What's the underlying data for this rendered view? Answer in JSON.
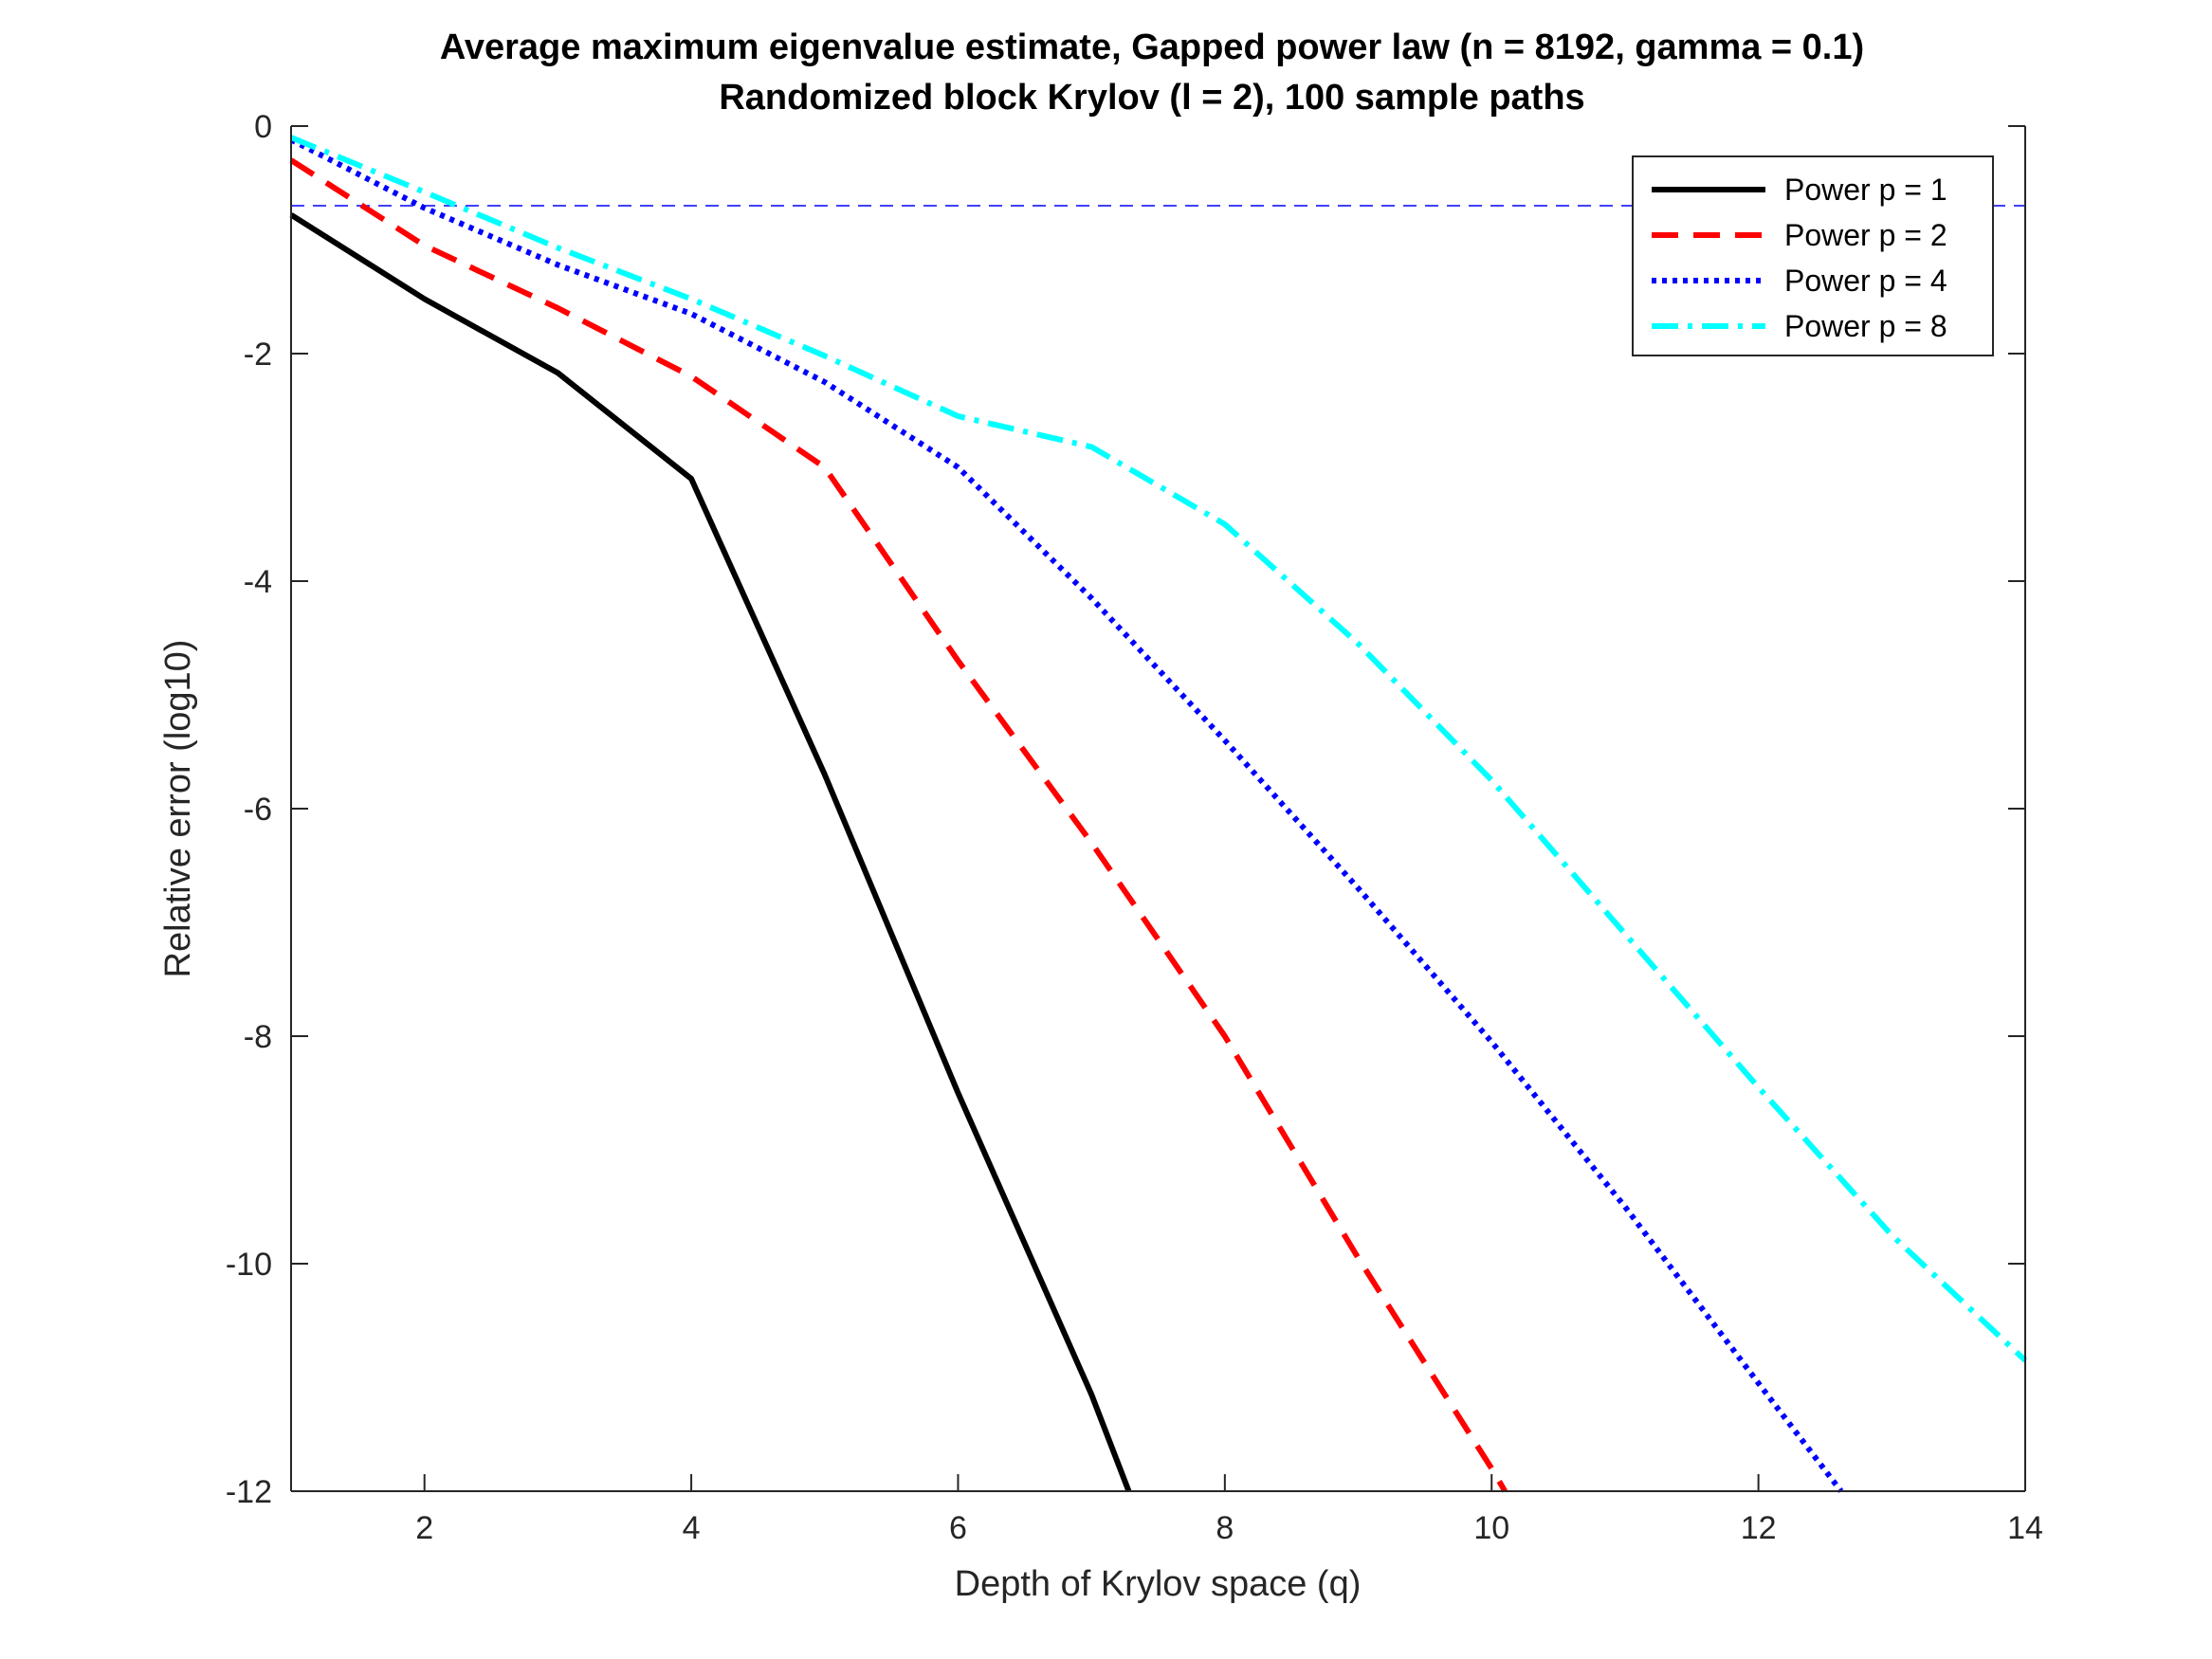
{
  "chart_data": {
    "type": "line",
    "title": "Average maximum eigenvalue estimate, Gapped power law (n = 8192, gamma = 0.1)",
    "subtitle": "Randomized block Krylov (l = 2), 100 sample paths",
    "xlabel": "Depth of Krylov space (q)",
    "ylabel": "Relative error (log10)",
    "xlim": [
      1,
      14
    ],
    "ylim": [
      -12,
      0
    ],
    "xticks": [
      2,
      4,
      6,
      8,
      10,
      12,
      14
    ],
    "yticks": [
      0,
      -2,
      -4,
      -6,
      -8,
      -10,
      -12
    ],
    "grid": false,
    "legend_position": "top-right",
    "reference_line": {
      "y": -0.7,
      "style": "dashed",
      "color": "#0000ff"
    },
    "series": [
      {
        "name": "Power p = 1",
        "color": "#000000",
        "style": "solid",
        "x": [
          1,
          2,
          3,
          4,
          5,
          6,
          7,
          7.28
        ],
        "y": [
          -0.78,
          -1.52,
          -2.17,
          -3.1,
          -5.7,
          -8.5,
          -11.15,
          -12
        ]
      },
      {
        "name": "Power p = 2",
        "color": "#ff0000",
        "style": "dashed",
        "x": [
          1,
          2,
          3,
          4,
          5,
          6,
          7,
          8,
          9,
          10,
          10.1
        ],
        "y": [
          -0.3,
          -1.05,
          -1.6,
          -2.2,
          -3.0,
          -4.7,
          -6.3,
          -8.0,
          -9.95,
          -11.8,
          -12
        ]
      },
      {
        "name": "Power p = 4",
        "color": "#0000ff",
        "style": "dotted",
        "x": [
          1,
          2,
          3,
          4,
          5,
          6,
          7,
          8,
          9,
          10,
          11,
          12,
          12.62
        ],
        "y": [
          -0.12,
          -0.72,
          -1.22,
          -1.65,
          -2.25,
          -3.0,
          -4.15,
          -5.4,
          -6.7,
          -8.05,
          -9.5,
          -11.05,
          -12
        ]
      },
      {
        "name": "Power p = 8",
        "color": "#00ffff",
        "style": "dashdot",
        "x": [
          1,
          2,
          3,
          4,
          5,
          6,
          7,
          8,
          9,
          10,
          11,
          12,
          13,
          14
        ],
        "y": [
          -0.1,
          -0.58,
          -1.07,
          -1.52,
          -2.02,
          -2.55,
          -2.82,
          -3.5,
          -4.55,
          -5.75,
          -7.1,
          -8.45,
          -9.75,
          -10.85
        ]
      }
    ]
  }
}
